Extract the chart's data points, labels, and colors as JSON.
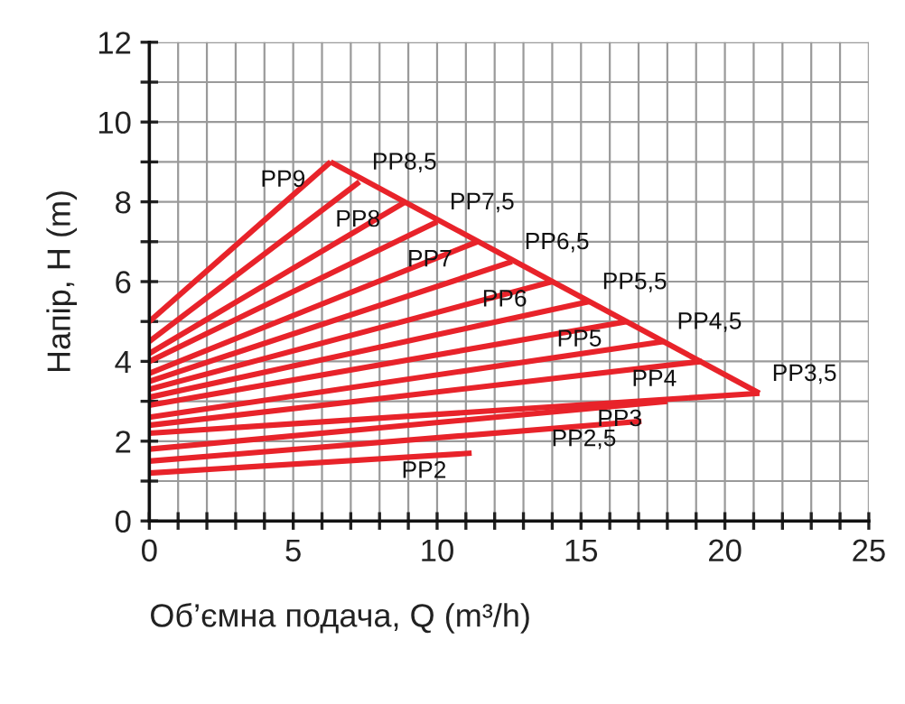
{
  "chart_data": {
    "type": "line",
    "xlabel": "Об’ємна подача, Q (m³/h)",
    "ylabel": "Напір, H (m)",
    "xlim": [
      0,
      25
    ],
    "ylim": [
      0,
      12
    ],
    "xticks": [
      0,
      {
        "value": 1,
        "label": null
      },
      {
        "value": 2,
        "label": null
      },
      {
        "value": 3,
        "label": null
      },
      {
        "value": 4,
        "label": null
      },
      5,
      {
        "value": 6,
        "label": null
      },
      {
        "value": 7,
        "label": null
      },
      {
        "value": 8,
        "label": null
      },
      {
        "value": 9,
        "label": null
      },
      10,
      {
        "value": 11,
        "label": null
      },
      {
        "value": 12,
        "label": null
      },
      {
        "value": 13,
        "label": null
      },
      {
        "value": 14,
        "label": null
      },
      15,
      {
        "value": 16,
        "label": null
      },
      {
        "value": 17,
        "label": null
      },
      {
        "value": 18,
        "label": null
      },
      {
        "value": 19,
        "label": null
      },
      20,
      {
        "value": 21,
        "label": null
      },
      {
        "value": 22,
        "label": null
      },
      {
        "value": 23,
        "label": null
      },
      {
        "value": 24,
        "label": null
      },
      25
    ],
    "yticks": [
      0,
      {
        "value": 1,
        "label": null
      },
      2,
      {
        "value": 3,
        "label": null
      },
      4,
      {
        "value": 5,
        "label": null
      },
      6,
      {
        "value": 7,
        "label": null
      },
      8,
      {
        "value": 9,
        "label": null
      },
      10,
      {
        "value": 11,
        "label": null
      },
      12
    ],
    "grid": true,
    "legend": false,
    "marker": "none",
    "line_style": "solid",
    "series": [
      {
        "name": "PP9",
        "color": "#e8232a",
        "x": [
          0,
          6.3
        ],
        "values": [
          5.0,
          9.0
        ]
      },
      {
        "name": "PP8,5",
        "color": "#e8232a",
        "x": [
          0,
          7.3
        ],
        "values": [
          4.5,
          8.5
        ]
      },
      {
        "name": "PP8",
        "color": "#e8232a",
        "x": [
          0,
          8.9
        ],
        "values": [
          4.2,
          8.0
        ]
      },
      {
        "name": "PP7,5",
        "color": "#e8232a",
        "x": [
          0,
          10.0
        ],
        "values": [
          4.0,
          7.5
        ]
      },
      {
        "name": "PP7",
        "color": "#e8232a",
        "x": [
          0,
          11.4
        ],
        "values": [
          3.7,
          7.0
        ]
      },
      {
        "name": "PP6,5",
        "color": "#e8232a",
        "x": [
          0,
          12.6
        ],
        "values": [
          3.5,
          6.5
        ]
      },
      {
        "name": "PP6",
        "color": "#e8232a",
        "x": [
          0,
          14.0
        ],
        "values": [
          3.3,
          6.0
        ]
      },
      {
        "name": "PP5,5",
        "color": "#e8232a",
        "x": [
          0,
          15.3
        ],
        "values": [
          3.1,
          5.5
        ]
      },
      {
        "name": "PP5",
        "color": "#e8232a",
        "x": [
          0,
          16.6
        ],
        "values": [
          2.9,
          5.0
        ]
      },
      {
        "name": "PP4,5",
        "color": "#e8232a",
        "x": [
          0,
          17.9
        ],
        "values": [
          2.6,
          4.5
        ]
      },
      {
        "name": "PP4",
        "color": "#e8232a",
        "x": [
          0,
          19.2
        ],
        "values": [
          2.4,
          4.0
        ]
      },
      {
        "name": "PP3,5",
        "color": "#e8232a",
        "x": [
          0,
          21.2
        ],
        "values": [
          2.2,
          3.2
        ]
      },
      {
        "name": "PP3",
        "color": "#e8232a",
        "x": [
          0,
          18.0
        ],
        "values": [
          1.8,
          3.0
        ]
      },
      {
        "name": "PP2,5",
        "color": "#e8232a",
        "x": [
          0,
          17.1
        ],
        "values": [
          1.5,
          2.5
        ]
      },
      {
        "name": "PP2",
        "color": "#e8232a",
        "x": [
          0,
          11.2
        ],
        "values": [
          1.2,
          1.7
        ]
      },
      {
        "color": "#e8232a",
        "x": [
          6.3,
          21.2
        ],
        "values": [
          9.0,
          3.2
        ]
      }
    ]
  }
}
